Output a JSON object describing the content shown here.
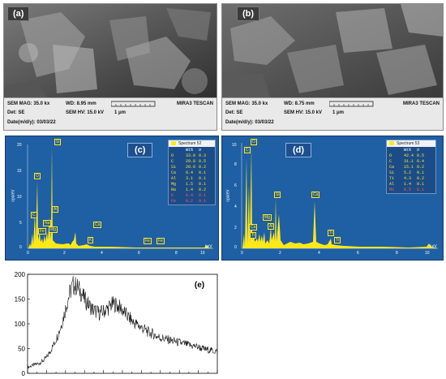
{
  "panels": {
    "a": {
      "label": "(a)",
      "sem_mag": "SEM MAG: 35.0 kx",
      "wd": "WD: 8.95 mm",
      "det": "Det: SE",
      "sem_hv": "SEM HV: 15.0 kV",
      "scale": "1 μm",
      "date": "Date(m/d/y): 03/03/22",
      "brand": "MIRA3 TESCAN"
    },
    "b": {
      "label": "(b)",
      "sem_mag": "SEM MAG: 35.0 kx",
      "wd": "WD: 8.75 mm",
      "det": "Det: SE",
      "sem_hv": "SEM HV: 15.0 kV",
      "scale": "1 μm",
      "date": "Date(m/d/y): 03/03/22",
      "brand": "MIRA3 TESCAN"
    },
    "c": {
      "label": "(c)",
      "ylabel": "cps/eV",
      "xlabel": "keV",
      "yticks": [
        "20",
        "15",
        "10",
        "5",
        "0"
      ],
      "xticks": [
        "0",
        "2",
        "4",
        "6",
        "8",
        "10"
      ],
      "spectrum": "Spectrum 52",
      "col_wt": "Wt%",
      "col_sigma": "σ",
      "rows": [
        {
          "el": "O",
          "wt": "33.0",
          "s": "0.3"
        },
        {
          "el": "C",
          "wt": "29.8",
          "s": "0.5"
        },
        {
          "el": "Si",
          "wt": "20.0",
          "s": "0.2"
        },
        {
          "el": "Ca",
          "wt": "8.4",
          "s": "0.1"
        },
        {
          "el": "Al",
          "wt": "3.1",
          "s": "0.1"
        },
        {
          "el": "Mg",
          "wt": "1.5",
          "s": "0.1"
        },
        {
          "el": "Na",
          "wt": "1.4",
          "s": "0.2"
        },
        {
          "el": "K",
          "wt": "0.4",
          "s": "0.1"
        },
        {
          "el": "Fe",
          "wt": "0.2",
          "s": "0.1"
        }
      ],
      "peaks": [
        "Si",
        "O",
        "C",
        "Na",
        "Al",
        "Fe",
        "Mg",
        "Ca",
        "K",
        "Fe",
        "Fe"
      ]
    },
    "d": {
      "label": "(d)",
      "ylabel": "cps/eV",
      "xlabel": "keV",
      "yticks": [
        "10",
        "8",
        "6",
        "4",
        "2",
        "0"
      ],
      "xticks": [
        "0",
        "2",
        "4",
        "6",
        "8",
        "10"
      ],
      "spectrum": "Spectrum 53",
      "col_wt": "Wt%",
      "col_sigma": "σ",
      "rows": [
        {
          "el": "O",
          "wt": "42.4",
          "s": "0.5"
        },
        {
          "el": "C",
          "wt": "31.1",
          "s": "0.4"
        },
        {
          "el": "Ca",
          "wt": "15.1",
          "s": "0.2"
        },
        {
          "el": "Si",
          "wt": "5.2",
          "s": "0.1"
        },
        {
          "el": "Ti",
          "wt": "4.3",
          "s": "0.2"
        },
        {
          "el": "Al",
          "wt": "1.4",
          "s": "0.1"
        },
        {
          "el": "Mo",
          "wt": "0.5",
          "s": "0.1"
        }
      ],
      "peaks": [
        "C",
        "O",
        "Ca",
        "Mg",
        "Si",
        "Ca",
        "Al",
        "Ti",
        "Ti",
        "Ti"
      ]
    },
    "e": {
      "label": "(e)",
      "yticks": [
        "200",
        "150",
        "100",
        "50",
        "0"
      ]
    }
  },
  "chart_data": {
    "type": "line",
    "ylim": [
      0,
      200
    ],
    "yticks": [
      0,
      50,
      100,
      150,
      200
    ],
    "series": [
      {
        "x": [
          0,
          1,
          2,
          3,
          4,
          5,
          6,
          7,
          8,
          9,
          10,
          11,
          12,
          13,
          14,
          15,
          16,
          17,
          18,
          19,
          20,
          21,
          22,
          23,
          24,
          25,
          26,
          27,
          28,
          29,
          30,
          31,
          32,
          33,
          34,
          35,
          36,
          37,
          38,
          39,
          40,
          41,
          42,
          43,
          44,
          45,
          46,
          47,
          48,
          49,
          50
        ],
        "values": [
          12,
          15,
          18,
          20,
          25,
          32,
          45,
          60,
          78,
          100,
          130,
          160,
          178,
          175,
          165,
          150,
          140,
          130,
          125,
          122,
          125,
          130,
          138,
          140,
          135,
          128,
          118,
          110,
          102,
          98,
          92,
          88,
          82,
          80,
          75,
          72,
          70,
          68,
          66,
          64,
          62,
          60,
          58,
          56,
          55,
          53,
          50,
          48,
          47,
          45,
          44
        ]
      }
    ]
  }
}
